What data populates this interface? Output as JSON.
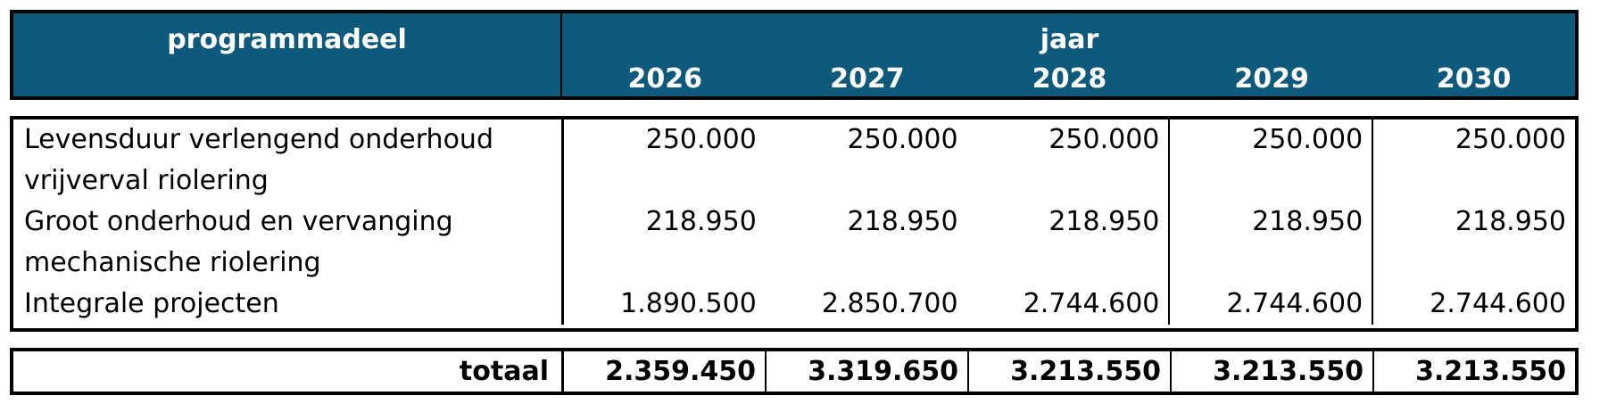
{
  "header": {
    "programmadeel": "programmadeel",
    "jaar": "jaar",
    "years": [
      "2026",
      "2027",
      "2028",
      "2029",
      "2030"
    ]
  },
  "rows": [
    {
      "label_lines": [
        "Levensduur verlengend onderhoud",
        "vrijverval riolering"
      ],
      "values": [
        "250.000",
        "250.000",
        "250.000",
        "250.000",
        "250.000"
      ]
    },
    {
      "label_lines": [
        "Groot onderhoud en vervanging",
        "mechanische riolering"
      ],
      "values": [
        "218.950",
        "218.950",
        "218.950",
        "218.950",
        "218.950"
      ]
    },
    {
      "label_lines": [
        "Integrale projecten"
      ],
      "values": [
        "1.890.500",
        "2.850.700",
        "2.744.600",
        "2.744.600",
        "2.744.600"
      ]
    }
  ],
  "total": {
    "label": "totaal",
    "values": [
      "2.359.450",
      "3.319.650",
      "3.213.550",
      "3.213.550",
      "3.213.550"
    ]
  },
  "colors": {
    "header_bg": "#0e5a7c",
    "header_text": "#ffffff",
    "border": "#000000"
  }
}
